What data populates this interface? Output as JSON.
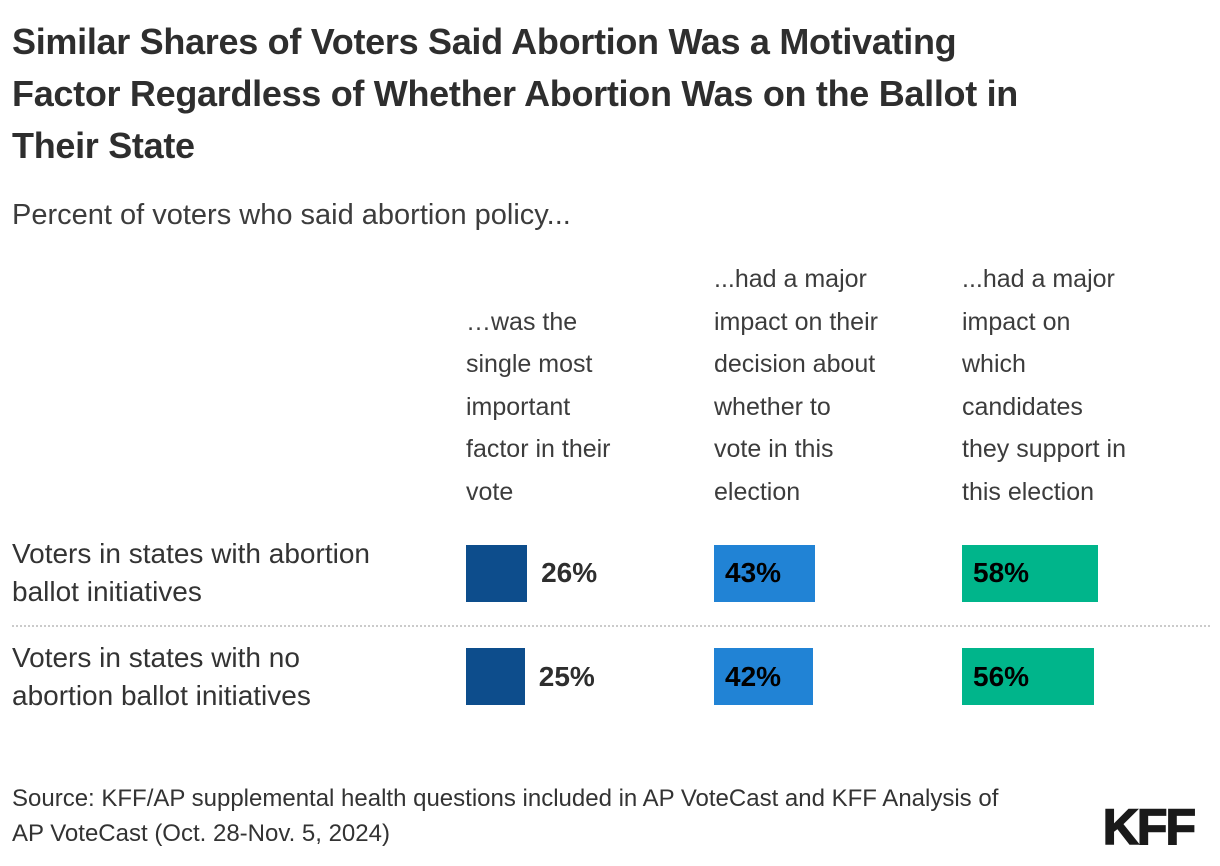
{
  "title": "Similar Shares of Voters Said Abortion Was a Motivating\nFactor Regardless of Whether Abortion Was on the Ballot in\nTheir State",
  "subtitle": "Percent of voters who said abortion policy...",
  "source": "Source: KFF/AP supplemental health questions included in AP VoteCast and KFF Analysis of\nAP VoteCast (Oct. 28-Nov. 5, 2024)",
  "logo_text": "KFF",
  "chart_data": {
    "type": "bar",
    "orientation": "horizontal",
    "value_suffix": "%",
    "xlim": [
      0,
      100
    ],
    "grid": false,
    "legend_position": "none",
    "columns": [
      {
        "label": "…was the\nsingle most\nimportant\nfactor in their\nvote",
        "color": "#0d4d8c"
      },
      {
        "label": "...had a major\nimpact on their\ndecision about\nwhether to\nvote in this\nelection",
        "color": "#2183d5"
      },
      {
        "label": "...had a major\nimpact on\nwhich\ncandidates\nthey support in\nthis election",
        "color": "#00b58b"
      }
    ],
    "rows": [
      {
        "label": "Voters in states with abortion\nballot initiatives",
        "values": [
          26,
          43,
          58
        ]
      },
      {
        "label": "Voters in states with no\nabortion ballot initiatives",
        "values": [
          25,
          42,
          56
        ]
      }
    ]
  }
}
